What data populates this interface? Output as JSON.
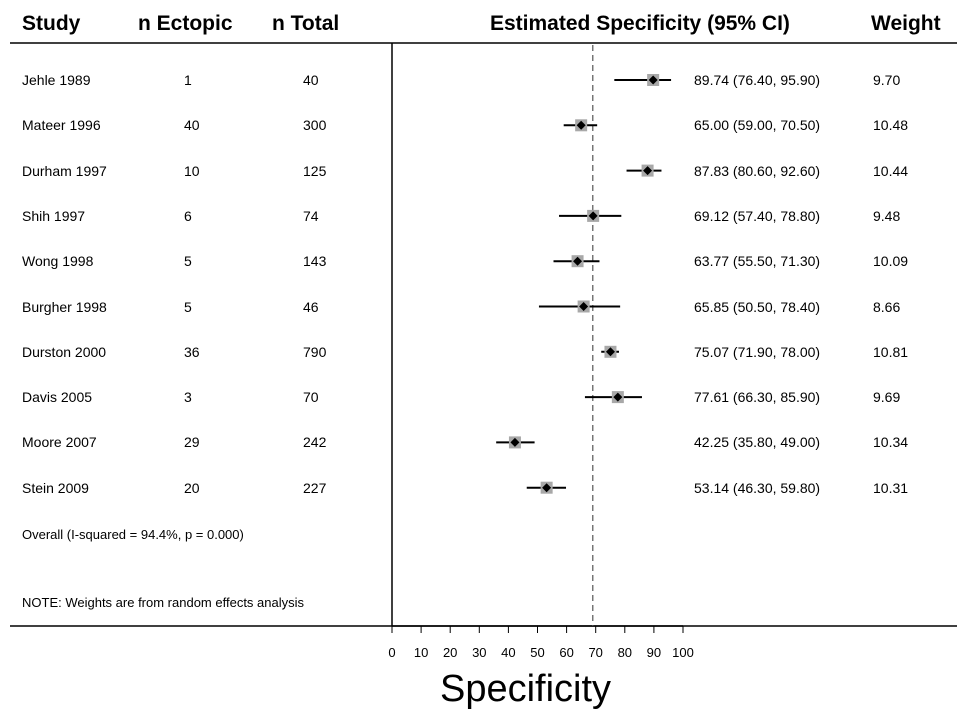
{
  "headers": {
    "study": "Study",
    "ectopic": "n Ectopic",
    "total": "n Total",
    "estimate": "Estimated Specificity (95% CI)",
    "weight": "Weight"
  },
  "overall_label": "Overall  (I-squared = 94.4%, p = 0.000)",
  "note": "NOTE: Weights are from random effects analysis",
  "chart_data": {
    "type": "forest",
    "xlabel": "Specificity",
    "xlim": [
      0,
      100
    ],
    "xticks": [
      0,
      10,
      20,
      30,
      40,
      50,
      60,
      70,
      80,
      90,
      100
    ],
    "pooled_estimate": 69,
    "rows": [
      {
        "study": "Jehle 1989",
        "ectopic": "1",
        "total": "40",
        "est": 89.74,
        "lo": 76.4,
        "hi": 95.9,
        "ci_text": "89.74 (76.40, 95.90)",
        "weight": "9.70"
      },
      {
        "study": "Mateer 1996",
        "ectopic": "40",
        "total": "300",
        "est": 65.0,
        "lo": 59.0,
        "hi": 70.5,
        "ci_text": "65.00 (59.00, 70.50)",
        "weight": "10.48"
      },
      {
        "study": "Durham 1997",
        "ectopic": "10",
        "total": "125",
        "est": 87.83,
        "lo": 80.6,
        "hi": 92.6,
        "ci_text": "87.83 (80.60, 92.60)",
        "weight": "10.44"
      },
      {
        "study": "Shih 1997",
        "ectopic": "6",
        "total": "74",
        "est": 69.12,
        "lo": 57.4,
        "hi": 78.8,
        "ci_text": "69.12 (57.40, 78.80)",
        "weight": "9.48"
      },
      {
        "study": "Wong 1998",
        "ectopic": "5",
        "total": "143",
        "est": 63.77,
        "lo": 55.5,
        "hi": 71.3,
        "ci_text": "63.77 (55.50, 71.30)",
        "weight": "10.09"
      },
      {
        "study": "Burgher 1998",
        "ectopic": "5",
        "total": "46",
        "est": 65.85,
        "lo": 50.5,
        "hi": 78.4,
        "ci_text": "65.85 (50.50, 78.40)",
        "weight": "8.66"
      },
      {
        "study": "Durston 2000",
        "ectopic": "36",
        "total": "790",
        "est": 75.07,
        "lo": 71.9,
        "hi": 78.0,
        "ci_text": "75.07 (71.90, 78.00)",
        "weight": "10.81"
      },
      {
        "study": "Davis 2005",
        "ectopic": "3",
        "total": "70",
        "est": 77.61,
        "lo": 66.3,
        "hi": 85.9,
        "ci_text": "77.61 (66.30, 85.90)",
        "weight": "9.69"
      },
      {
        "study": "Moore 2007",
        "ectopic": "29",
        "total": "242",
        "est": 42.25,
        "lo": 35.8,
        "hi": 49.0,
        "ci_text": "42.25 (35.80, 49.00)",
        "weight": "10.34"
      },
      {
        "study": "Stein 2009",
        "ectopic": "20",
        "total": "227",
        "est": 53.14,
        "lo": 46.3,
        "hi": 59.8,
        "ci_text": "53.14 (46.30, 59.80)",
        "weight": "10.31"
      }
    ]
  }
}
